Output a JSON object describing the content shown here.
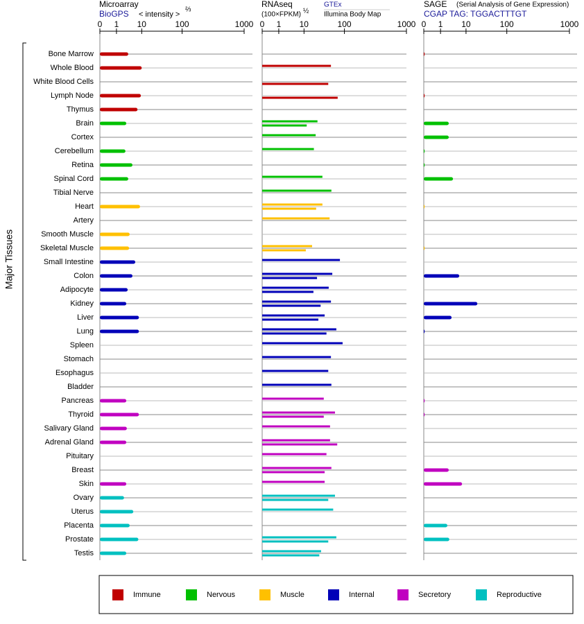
{
  "chart_data": {
    "type": "bar",
    "orientation": "horizontal",
    "y_axis_label": "Major Tissues",
    "categories": [
      "Bone Marrow",
      "Whole Blood",
      "White Blood Cells",
      "Lymph Node",
      "Thymus",
      "Brain",
      "Cortex",
      "Cerebellum",
      "Retina",
      "Spinal Cord",
      "Tibial Nerve",
      "Heart",
      "Artery",
      "Smooth Muscle",
      "Skeletal Muscle",
      "Small Intestine",
      "Colon",
      "Adipocyte",
      "Kidney",
      "Liver",
      "Lung",
      "Spleen",
      "Stomach",
      "Esophagus",
      "Bladder",
      "Pancreas",
      "Thyroid",
      "Salivary Gland",
      "Adrenal Gland",
      "Pituitary",
      "Breast",
      "Skin",
      "Ovary",
      "Uterus",
      "Placenta",
      "Prostate",
      "Testis"
    ],
    "category_group": [
      0,
      0,
      0,
      0,
      0,
      1,
      1,
      1,
      1,
      1,
      1,
      2,
      2,
      2,
      2,
      3,
      3,
      3,
      3,
      3,
      3,
      3,
      3,
      3,
      3,
      4,
      4,
      4,
      4,
      4,
      4,
      4,
      5,
      5,
      5,
      5,
      5
    ],
    "groups": [
      {
        "name": "Immune",
        "color": "#c00000"
      },
      {
        "name": "Nervous",
        "color": "#00c000"
      },
      {
        "name": "Muscle",
        "color": "#ffc000"
      },
      {
        "name": "Internal",
        "color": "#0000b8"
      },
      {
        "name": "Secretory",
        "color": "#c000c0"
      },
      {
        "name": "Reproductive",
        "color": "#00c0c0"
      }
    ],
    "panels": [
      {
        "title": "Microarray",
        "unit": "< intensity >",
        "unit_power": "⅔",
        "xlim": [
          0,
          1000
        ],
        "xticks": [
          0,
          1,
          10,
          100,
          1000
        ],
        "series": [
          {
            "name": "BioGPS",
            "values": [
              5.2,
              10,
              null,
              9.7,
              8.5,
              4.5,
              null,
              4.2,
              6.7,
              5.2,
              null,
              9.4,
              null,
              5.7,
              5.5,
              7.7,
              6.7,
              5,
              4.5,
              9,
              9,
              null,
              null,
              null,
              null,
              4.5,
              9,
              4.7,
              4.5,
              null,
              null,
              4.5,
              3.7,
              7,
              5.7,
              8.8,
              4.5
            ]
          }
        ]
      },
      {
        "title": "RNAseq",
        "unit": "(100×FPKM)",
        "unit_power": "½",
        "xlim": [
          0,
          1000
        ],
        "xticks": [
          0,
          1,
          10,
          100,
          1000
        ],
        "series": [
          {
            "name": "GTEx",
            "values": [
              null,
              70,
              null,
              null,
              null,
              40,
              36,
              32,
              null,
              51,
              71,
              51,
              67,
              null,
              28,
              90,
              73,
              65,
              70,
              56,
              82,
              96,
              70,
              64,
              71,
              54,
              79,
              68,
              68,
              60,
              71,
              56,
              79,
              75,
              null,
              82,
              48
            ]
          },
          {
            "name": "Illumina Body Map",
            "values": [
              null,
              null,
              64,
              85,
              null,
              16,
              null,
              null,
              null,
              null,
              null,
              37,
              null,
              null,
              14,
              null,
              39,
              31,
              47,
              42,
              60,
              null,
              null,
              null,
              null,
              null,
              54,
              null,
              84,
              null,
              56,
              null,
              64,
              null,
              null,
              64,
              44
            ]
          }
        ]
      },
      {
        "title": "SAGE",
        "subtitle": "(Serial Analysis of Gene Expression)",
        "xlim": [
          0,
          1000
        ],
        "xticks": [
          0,
          1,
          10,
          100,
          1000
        ],
        "series": [
          {
            "name": "CGAP TAG: TGGACTTTGT",
            "values": [
              0.05,
              null,
              null,
              0.05,
              null,
              3.9,
              3.9,
              0.05,
              0.05,
              5.4,
              null,
              0.05,
              null,
              null,
              0.05,
              null,
              7.6,
              null,
              35,
              4.9,
              0.05,
              null,
              null,
              null,
              null,
              0.05,
              0.05,
              null,
              null,
              null,
              3.9,
              8.6,
              null,
              null,
              3.4,
              4.1,
              null
            ]
          }
        ]
      }
    ]
  }
}
